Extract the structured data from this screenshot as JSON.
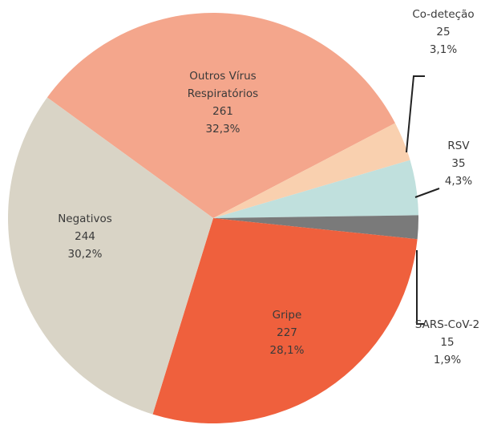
{
  "chart_data": {
    "type": "pie",
    "categories": [
      "Outros Vírus Respiratórios",
      "Co-deteção",
      "RSV",
      "SARS-CoV-2",
      "Gripe",
      "Negativos"
    ],
    "values": [
      261,
      25,
      35,
      15,
      227,
      244
    ],
    "percents": [
      32.3,
      3.1,
      4.3,
      1.9,
      28.1,
      30.2
    ],
    "percent_labels": [
      "32,3%",
      "3,1%",
      "4,3%",
      "1,9%",
      "28,1%",
      "30,2%"
    ],
    "colors": [
      "#f4a68c",
      "#f9d0af",
      "#c0e0dd",
      "#7a7a7a",
      "#ef603d",
      "#d9d4c6"
    ]
  }
}
